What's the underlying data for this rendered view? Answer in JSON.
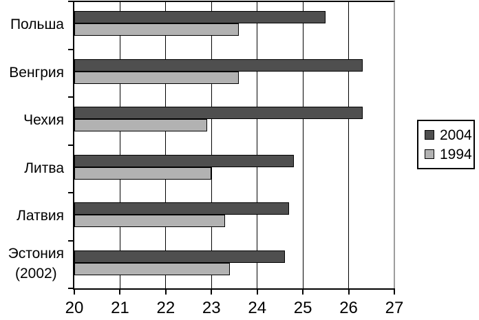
{
  "chart_data": {
    "type": "bar",
    "orientation": "horizontal",
    "title": "",
    "xlabel": "",
    "ylabel": "",
    "categories": [
      "Польша",
      "Венгрия",
      "Чехия",
      "Литва",
      "Латвия",
      "Эстония\n(2002)"
    ],
    "series": [
      {
        "name": "2004",
        "color": "#4f4f4f",
        "values": [
          25.5,
          26.3,
          26.3,
          24.8,
          24.7,
          24.6
        ]
      },
      {
        "name": "1994",
        "color": "#b2b2b2",
        "values": [
          23.6,
          23.6,
          22.9,
          23.0,
          23.3,
          23.4
        ]
      }
    ],
    "xlim": [
      20,
      27
    ],
    "xticks": [
      20,
      21,
      22,
      23,
      24,
      25,
      26,
      27
    ],
    "grid": true,
    "legend_position": "right",
    "axis_color": "#000000",
    "right_border_color": "#9c9c9c",
    "background_color": "#ffffff"
  }
}
